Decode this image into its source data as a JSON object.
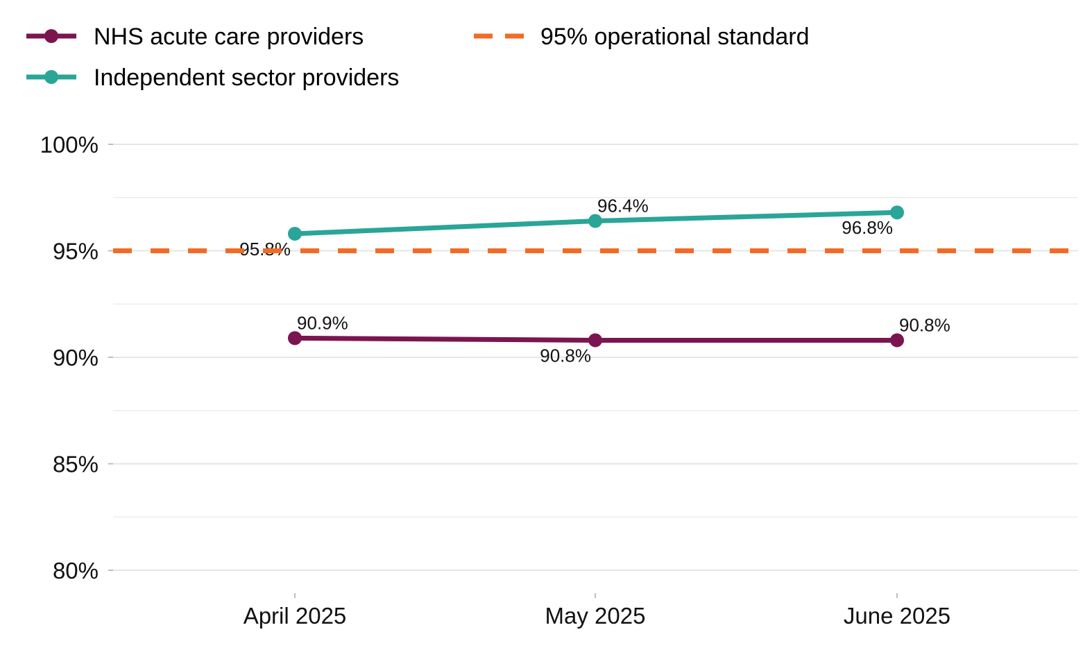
{
  "chart_data": {
    "type": "line",
    "title": "",
    "xlabel": "",
    "ylabel": "",
    "categories": [
      "April 2025",
      "May 2025",
      "June 2025"
    ],
    "ylim": [
      80,
      100
    ],
    "yticks": [
      80,
      85,
      90,
      95,
      100
    ],
    "ytick_labels": [
      "80%",
      "85%",
      "90%",
      "95%",
      "100%"
    ],
    "grid": true,
    "legend_position": "top-left",
    "series": [
      {
        "name": "NHS acute care providers",
        "color": "#7b1550",
        "values": [
          90.9,
          90.8,
          90.8
        ],
        "labels": [
          "90.9%",
          "90.8%",
          "90.8%"
        ],
        "label_positions": [
          "above-right",
          "below-left",
          "above-right"
        ]
      },
      {
        "name": "Independent sector providers",
        "color": "#2aa597",
        "values": [
          95.8,
          96.4,
          96.8
        ],
        "labels": [
          "95.8%",
          "96.4%",
          "96.8%"
        ],
        "label_positions": [
          "below-left",
          "above-right",
          "below-left"
        ]
      }
    ],
    "reference_line": {
      "name": "95% operational standard",
      "value": 95,
      "color": "#f26b26",
      "style": "dashed"
    }
  }
}
